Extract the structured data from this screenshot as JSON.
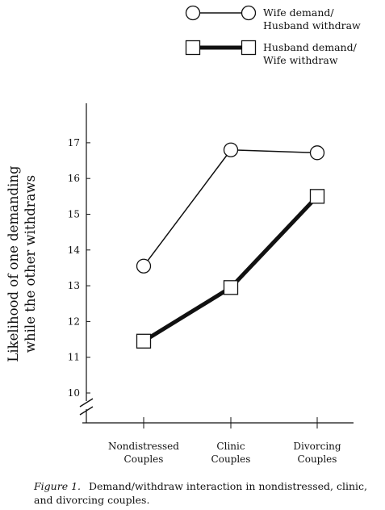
{
  "chart_data": {
    "type": "line",
    "categories": [
      [
        "Nondistressed",
        "Couples"
      ],
      [
        "Clinic",
        "Couples"
      ],
      [
        "Divorcing",
        "Couples"
      ]
    ],
    "ylabel": [
      "Likelihood of one demanding",
      "while the other withdraws"
    ],
    "yticks": [
      10,
      11,
      12,
      13,
      14,
      15,
      16,
      17
    ],
    "ylim": [
      10,
      17.8
    ],
    "axis_break": true,
    "grid": false,
    "legend_position": "top-right",
    "series": [
      {
        "name": [
          "Wife demand/",
          "Husband withdraw"
        ],
        "marker": "circle",
        "line_weight": "thin",
        "values": [
          13.55,
          16.8,
          16.72
        ]
      },
      {
        "name": [
          "Husband demand/",
          "Wife withdraw"
        ],
        "marker": "square",
        "line_weight": "thick",
        "values": [
          11.45,
          12.95,
          15.5
        ]
      }
    ]
  },
  "caption": {
    "label": "Figure 1.",
    "text": "Demand/withdraw interaction in nondistressed, clinic, and divorcing couples."
  },
  "colors": {
    "ink": "#111111",
    "marker_fill": "#ffffff"
  }
}
